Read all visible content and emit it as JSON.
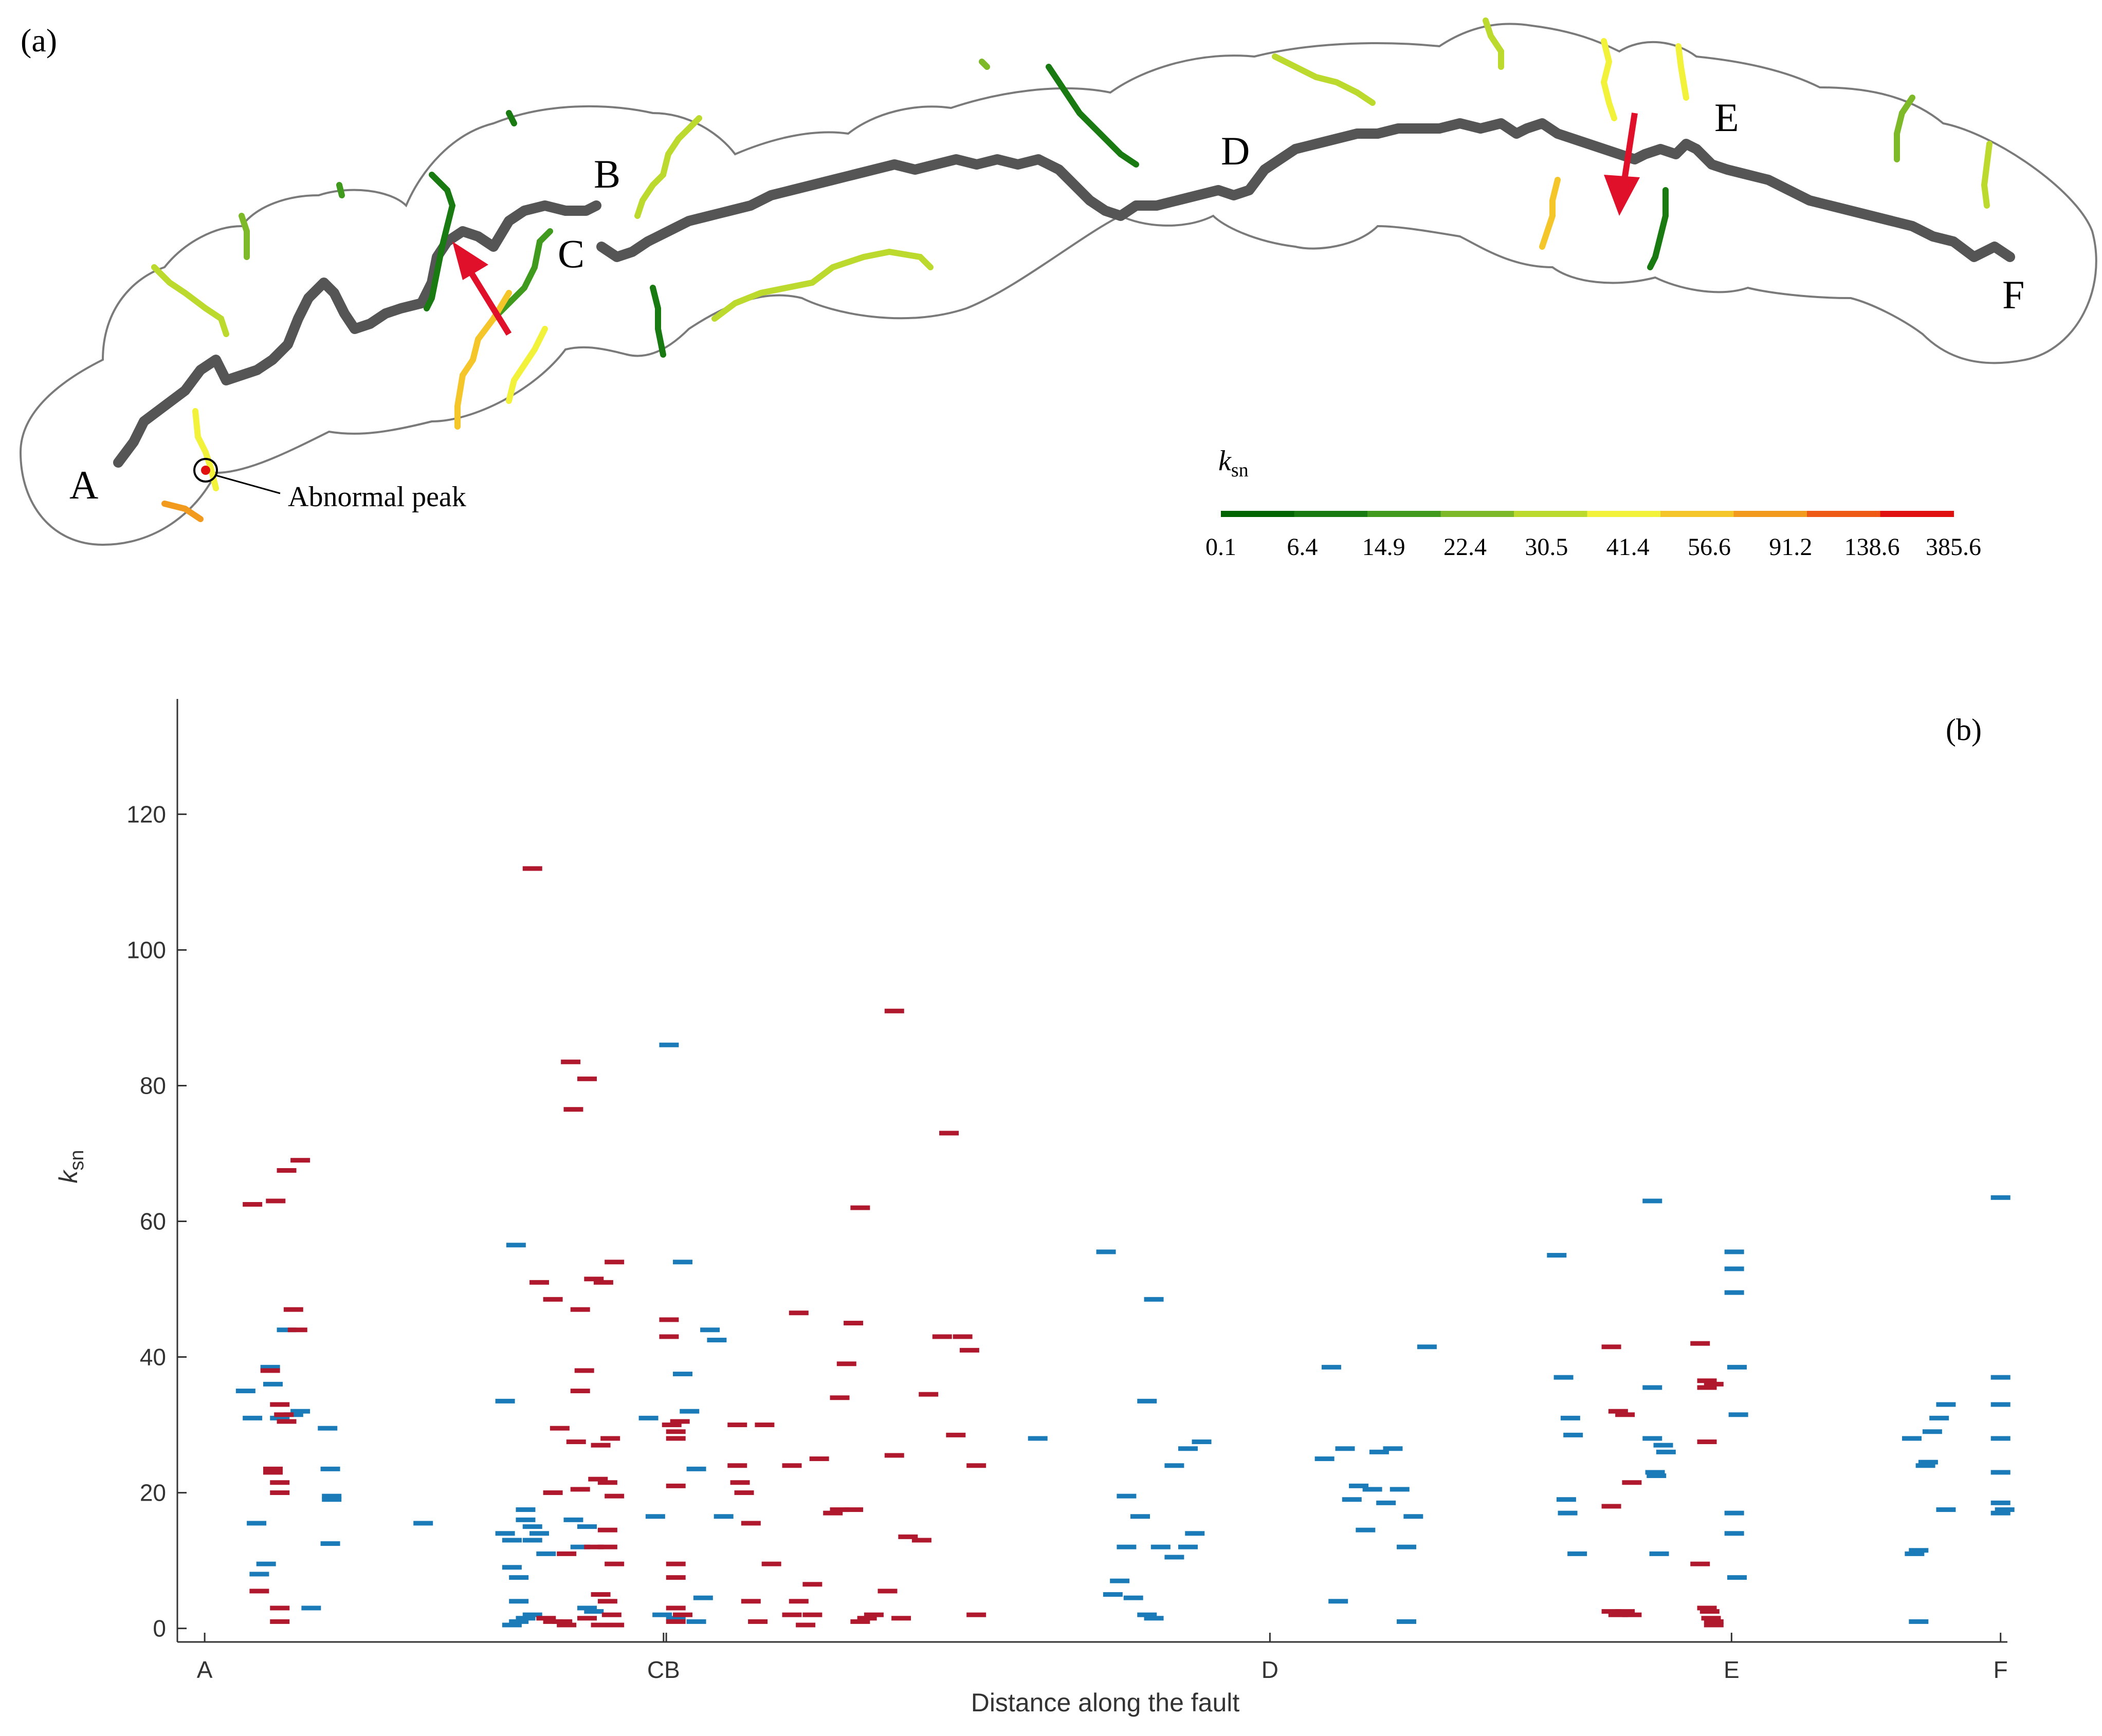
{
  "panel_a": {
    "label": "(a)",
    "point_labels": [
      "A",
      "B",
      "C",
      "D",
      "E",
      "F"
    ],
    "annotation": "Abnormal peak",
    "colorbar": {
      "title_main": "k",
      "title_sub": "sn",
      "ticks": [
        "0.1",
        "6.4",
        "14.9",
        "22.4",
        "30.5",
        "41.4",
        "56.6",
        "91.2",
        "138.6",
        "385.6"
      ],
      "colors": [
        "#006400",
        "#1a7a12",
        "#3f9a1e",
        "#7db928",
        "#bcd92e",
        "#f2f23a",
        "#f5c62a",
        "#f29a1e",
        "#ee5a16",
        "#e01010"
      ]
    },
    "colors": {
      "fault": "#555555",
      "outline": "#7a7a7a",
      "arrow": "#e0102a"
    }
  },
  "panel_b": {
    "label": "(b)",
    "xlabel": "Distance along the fault",
    "ylabel_main": "k",
    "ylabel_sub": "sn",
    "colors": {
      "blue": "#1a7bb8",
      "red": "#b0182e"
    }
  },
  "chart_data": {
    "type": "scatter",
    "title": "",
    "xlabel": "Distance along the fault",
    "ylabel": "ksn",
    "ylim": [
      -2,
      137
    ],
    "xlim": [
      -0.2,
      13.2
    ],
    "yticks": [
      0,
      20,
      40,
      60,
      80,
      100,
      120
    ],
    "xticks": [
      {
        "label": "A",
        "value": 0
      },
      {
        "label": "C",
        "value": 3.36
      },
      {
        "label": "B",
        "value": 3.38
      },
      {
        "label": "D",
        "value": 7.8
      },
      {
        "label": "E",
        "value": 11.18
      },
      {
        "label": "F",
        "value": 13.15
      }
    ],
    "grid": false,
    "series": [
      {
        "color": "blue",
        "points": [
          [
            0.3,
            35
          ],
          [
            0.35,
            31
          ],
          [
            0.38,
            15.5
          ],
          [
            0.4,
            8
          ],
          [
            0.45,
            9.5
          ],
          [
            0.48,
            38.5
          ],
          [
            0.5,
            36
          ],
          [
            0.55,
            31
          ],
          [
            0.6,
            44
          ],
          [
            0.65,
            31.5
          ],
          [
            0.7,
            32
          ],
          [
            0.78,
            3
          ],
          [
            0.9,
            29.5
          ],
          [
            0.92,
            23.5
          ],
          [
            0.93,
            19.5
          ],
          [
            0.93,
            19
          ],
          [
            0.92,
            12.5
          ],
          [
            1.6,
            15.5
          ],
          [
            2.2,
            33.5
          ],
          [
            2.2,
            14
          ],
          [
            2.25,
            13
          ],
          [
            2.25,
            9
          ],
          [
            2.3,
            7.5
          ],
          [
            2.3,
            4
          ],
          [
            2.28,
            56.5
          ],
          [
            2.25,
            0.5
          ],
          [
            2.3,
            1
          ],
          [
            2.35,
            16
          ],
          [
            2.35,
            17.5
          ],
          [
            2.4,
            15
          ],
          [
            2.4,
            13
          ],
          [
            2.45,
            14
          ],
          [
            2.35,
            1.5
          ],
          [
            2.4,
            2
          ],
          [
            2.5,
            11
          ],
          [
            2.7,
            16
          ],
          [
            2.75,
            12
          ],
          [
            2.8,
            15
          ],
          [
            2.8,
            3
          ],
          [
            2.85,
            2.5
          ],
          [
            3.25,
            31
          ],
          [
            3.3,
            16.5
          ],
          [
            3.35,
            2
          ],
          [
            3.4,
            86
          ],
          [
            3.45,
            1.5
          ],
          [
            3.5,
            54
          ],
          [
            3.5,
            37.5
          ],
          [
            3.55,
            32
          ],
          [
            3.6,
            23.5
          ],
          [
            3.6,
            1
          ],
          [
            3.65,
            4.5
          ],
          [
            3.7,
            44
          ],
          [
            3.75,
            42.5
          ],
          [
            3.8,
            16.5
          ],
          [
            6.1,
            28
          ],
          [
            6.6,
            55.5
          ],
          [
            6.65,
            5
          ],
          [
            6.7,
            7
          ],
          [
            6.75,
            12
          ],
          [
            6.75,
            19.5
          ],
          [
            6.8,
            4.5
          ],
          [
            6.85,
            16.5
          ],
          [
            6.9,
            33.5
          ],
          [
            6.9,
            2
          ],
          [
            6.95,
            48.5
          ],
          [
            6.95,
            1.5
          ],
          [
            7.0,
            12
          ],
          [
            7.1,
            24
          ],
          [
            7.1,
            10.5
          ],
          [
            7.2,
            12
          ],
          [
            7.2,
            26.5
          ],
          [
            7.25,
            14
          ],
          [
            7.3,
            27.5
          ],
          [
            8.2,
            25
          ],
          [
            8.25,
            38.5
          ],
          [
            8.3,
            4
          ],
          [
            8.35,
            26.5
          ],
          [
            8.4,
            19
          ],
          [
            8.45,
            21
          ],
          [
            8.5,
            14.5
          ],
          [
            8.55,
            20.5
          ],
          [
            8.6,
            26
          ],
          [
            8.65,
            18.5
          ],
          [
            8.7,
            26.5
          ],
          [
            8.75,
            20.5
          ],
          [
            8.8,
            12
          ],
          [
            8.85,
            16.5
          ],
          [
            8.8,
            1
          ],
          [
            8.95,
            41.5
          ],
          [
            9.9,
            55
          ],
          [
            9.95,
            37
          ],
          [
            9.97,
            19
          ],
          [
            9.98,
            17
          ],
          [
            10.0,
            31
          ],
          [
            10.02,
            28.5
          ],
          [
            10.05,
            11
          ],
          [
            10.6,
            35.5
          ],
          [
            10.6,
            28
          ],
          [
            10.62,
            23
          ],
          [
            10.63,
            22.5
          ],
          [
            10.65,
            11
          ],
          [
            10.68,
            27
          ],
          [
            10.7,
            26
          ],
          [
            10.6,
            63
          ],
          [
            11.2,
            55.5
          ],
          [
            11.2,
            53
          ],
          [
            11.2,
            49.5
          ],
          [
            11.22,
            38.5
          ],
          [
            11.23,
            31.5
          ],
          [
            11.2,
            17
          ],
          [
            11.2,
            14
          ],
          [
            11.22,
            7.5
          ],
          [
            12.5,
            28
          ],
          [
            12.52,
            11
          ],
          [
            12.55,
            11.5
          ],
          [
            12.55,
            1
          ],
          [
            12.6,
            24
          ],
          [
            12.62,
            24.5
          ],
          [
            12.65,
            29
          ],
          [
            12.7,
            31
          ],
          [
            12.75,
            33
          ],
          [
            12.75,
            17.5
          ],
          [
            13.15,
            63.5
          ],
          [
            13.15,
            37
          ],
          [
            13.15,
            33
          ],
          [
            13.15,
            28
          ],
          [
            13.15,
            23
          ],
          [
            13.15,
            18.5
          ],
          [
            13.15,
            17
          ],
          [
            13.18,
            17.5
          ]
        ]
      },
      {
        "color": "red",
        "points": [
          [
            0.35,
            62.5
          ],
          [
            0.4,
            5.5
          ],
          [
            0.48,
            38
          ],
          [
            0.5,
            23.5
          ],
          [
            0.5,
            23
          ],
          [
            0.52,
            63
          ],
          [
            0.55,
            33
          ],
          [
            0.55,
            21.5
          ],
          [
            0.55,
            20
          ],
          [
            0.55,
            3
          ],
          [
            0.55,
            1
          ],
          [
            0.58,
            31.5
          ],
          [
            0.6,
            30.5
          ],
          [
            0.6,
            67.5
          ],
          [
            0.65,
            47
          ],
          [
            0.68,
            44
          ],
          [
            0.7,
            69
          ],
          [
            2.4,
            112
          ],
          [
            2.45,
            51
          ],
          [
            2.5,
            1.5
          ],
          [
            2.55,
            48.5
          ],
          [
            2.55,
            20
          ],
          [
            2.55,
            1
          ],
          [
            2.6,
            29.5
          ],
          [
            2.62,
            1
          ],
          [
            2.65,
            11
          ],
          [
            2.65,
            0.5
          ],
          [
            2.68,
            83.5
          ],
          [
            2.7,
            76.5
          ],
          [
            2.72,
            27.5
          ],
          [
            2.75,
            47
          ],
          [
            2.75,
            35
          ],
          [
            2.75,
            20.5
          ],
          [
            2.78,
            38
          ],
          [
            2.8,
            81
          ],
          [
            2.8,
            1.5
          ],
          [
            2.85,
            51.5
          ],
          [
            2.85,
            12
          ],
          [
            2.88,
            22
          ],
          [
            2.9,
            27
          ],
          [
            2.9,
            5
          ],
          [
            2.9,
            0.5
          ],
          [
            2.92,
            51
          ],
          [
            2.95,
            21.5
          ],
          [
            2.95,
            14.5
          ],
          [
            2.95,
            12
          ],
          [
            2.95,
            4
          ],
          [
            2.97,
            28
          ],
          [
            2.98,
            2
          ],
          [
            3.0,
            54
          ],
          [
            3.0,
            19.5
          ],
          [
            3.0,
            9.5
          ],
          [
            3.0,
            0.5
          ],
          [
            3.4,
            45.5
          ],
          [
            3.4,
            43
          ],
          [
            3.42,
            30
          ],
          [
            3.45,
            29
          ],
          [
            3.45,
            28
          ],
          [
            3.45,
            21
          ],
          [
            3.45,
            9.5
          ],
          [
            3.45,
            7.5
          ],
          [
            3.45,
            3
          ],
          [
            3.45,
            1
          ],
          [
            3.48,
            30.5
          ],
          [
            3.5,
            2
          ],
          [
            3.9,
            30
          ],
          [
            3.9,
            24
          ],
          [
            3.92,
            21.5
          ],
          [
            3.95,
            20
          ],
          [
            4.0,
            15.5
          ],
          [
            4.0,
            4
          ],
          [
            4.05,
            1
          ],
          [
            4.1,
            30
          ],
          [
            4.15,
            9.5
          ],
          [
            4.3,
            24
          ],
          [
            4.3,
            2
          ],
          [
            4.35,
            46.5
          ],
          [
            4.35,
            4
          ],
          [
            4.4,
            0.5
          ],
          [
            4.45,
            6.5
          ],
          [
            4.45,
            2
          ],
          [
            4.5,
            25
          ],
          [
            4.6,
            17
          ],
          [
            4.65,
            34
          ],
          [
            4.65,
            17.5
          ],
          [
            4.7,
            39
          ],
          [
            4.75,
            45
          ],
          [
            4.75,
            17.5
          ],
          [
            4.8,
            62
          ],
          [
            4.8,
            1
          ],
          [
            4.85,
            1.5
          ],
          [
            4.9,
            2
          ],
          [
            5.0,
            5.5
          ],
          [
            5.05,
            91
          ],
          [
            5.05,
            25.5
          ],
          [
            5.1,
            1.5
          ],
          [
            5.15,
            13.5
          ],
          [
            5.25,
            13
          ],
          [
            5.3,
            34.5
          ],
          [
            5.4,
            43
          ],
          [
            5.45,
            73
          ],
          [
            5.5,
            28.5
          ],
          [
            5.55,
            43
          ],
          [
            5.6,
            41
          ],
          [
            5.65,
            24
          ],
          [
            5.65,
            2
          ],
          [
            10.3,
            41.5
          ],
          [
            10.3,
            18
          ],
          [
            10.3,
            2.5
          ],
          [
            10.35,
            32
          ],
          [
            10.35,
            2
          ],
          [
            10.4,
            31.5
          ],
          [
            10.4,
            2.5
          ],
          [
            10.45,
            21.5
          ],
          [
            10.45,
            2
          ],
          [
            10.95,
            42
          ],
          [
            10.95,
            9.5
          ],
          [
            11.0,
            36.5
          ],
          [
            11.0,
            35.5
          ],
          [
            11.0,
            27.5
          ],
          [
            11.0,
            3
          ],
          [
            11.02,
            2.5
          ],
          [
            11.03,
            1.5
          ],
          [
            11.05,
            1
          ],
          [
            11.05,
            36
          ],
          [
            11.05,
            0.5
          ]
        ]
      }
    ]
  }
}
